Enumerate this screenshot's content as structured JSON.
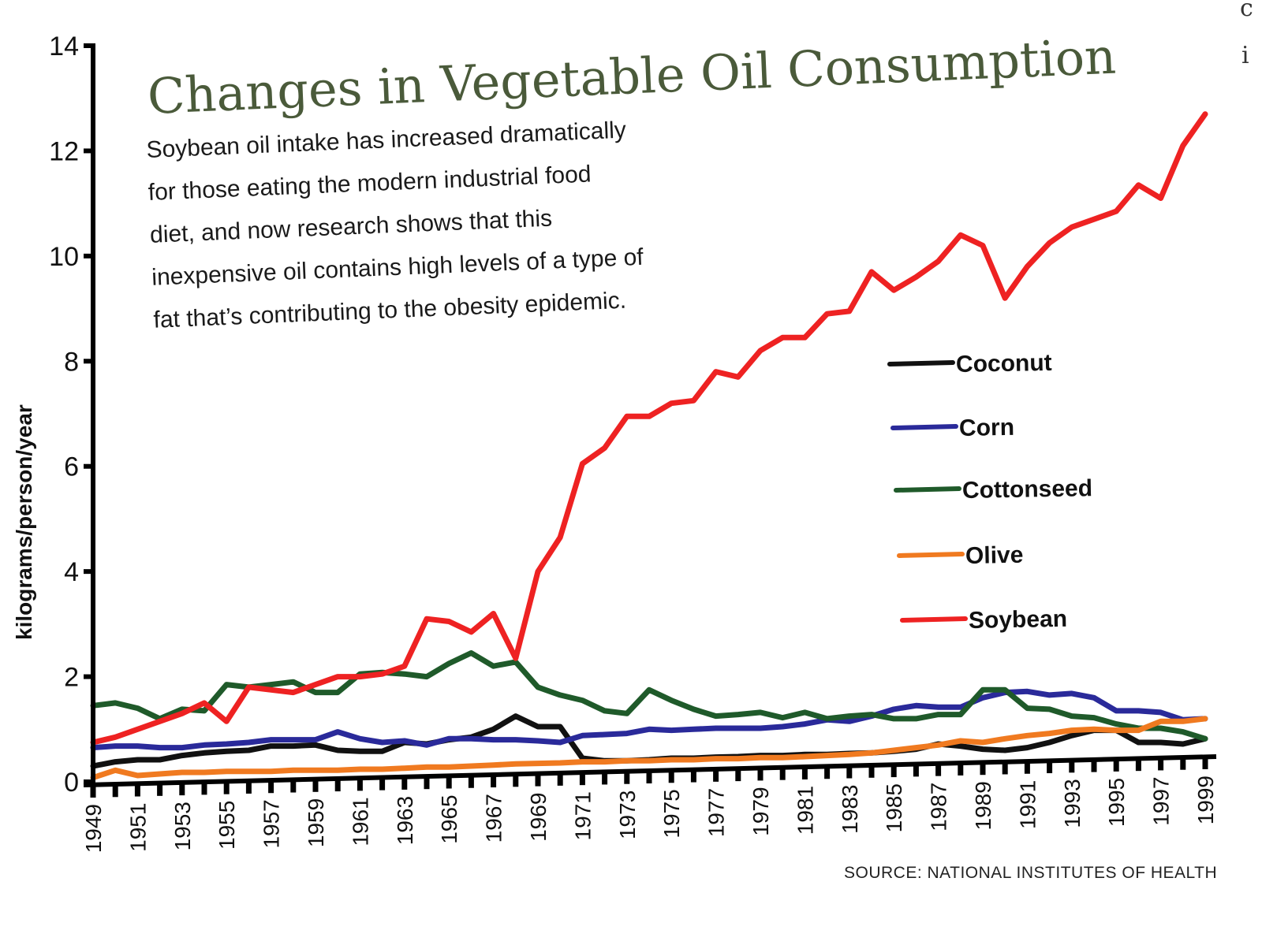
{
  "chart_data": {
    "type": "line",
    "title": "Changes in Vegetable Oil Consumption",
    "subtitle": "Soybean oil intake has increased dramatically for those eating the modern industrial food diet, and now research shows that this inexpensive oil contains high levels of a type of fat that's contributing to the obesity epidemic.",
    "subtitle_lines": [
      "Soybean oil intake has increased dramatically",
      "for those eating the modern industrial food",
      "diet, and now research shows that this",
      "inexpensive oil contains high levels of a type of",
      "fat that’s contributing to the obesity epidemic."
    ],
    "xlabel": "",
    "ylabel": "kilograms/person/year",
    "ylim": [
      0,
      14
    ],
    "yticks": [
      0,
      2,
      4,
      6,
      8,
      10,
      12,
      14
    ],
    "xlim": [
      1949,
      1999
    ],
    "xtick_labels": [
      "1949",
      "1951",
      "1953",
      "1955",
      "1957",
      "1959",
      "1961",
      "1963",
      "1965",
      "1967",
      "1969",
      "1971",
      "1973",
      "1975",
      "1977",
      "1979",
      "1981",
      "1983",
      "1985",
      "1987",
      "1989",
      "1991",
      "1993",
      "1995",
      "1997",
      "1999"
    ],
    "grid": false,
    "legend_position": "right",
    "source": "SOURCE: NATIONAL INSTITUTES OF HEALTH",
    "x": [
      1949,
      1950,
      1951,
      1952,
      1953,
      1954,
      1955,
      1956,
      1957,
      1958,
      1959,
      1960,
      1961,
      1962,
      1963,
      1964,
      1965,
      1966,
      1967,
      1968,
      1969,
      1970,
      1971,
      1972,
      1973,
      1974,
      1975,
      1976,
      1977,
      1978,
      1979,
      1980,
      1981,
      1982,
      1983,
      1984,
      1985,
      1986,
      1987,
      1988,
      1989,
      1990,
      1991,
      1992,
      1993,
      1994,
      1995,
      1996,
      1997,
      1998,
      1999
    ],
    "series": [
      {
        "name": "Coconut",
        "color": "#111111",
        "values": [
          0.3,
          0.38,
          0.42,
          0.42,
          0.5,
          0.55,
          0.58,
          0.6,
          0.68,
          0.68,
          0.7,
          0.6,
          0.58,
          0.58,
          0.75,
          0.72,
          0.8,
          0.85,
          1.0,
          1.25,
          1.05,
          1.05,
          0.45,
          0.4,
          0.4,
          0.42,
          0.45,
          0.45,
          0.47,
          0.48,
          0.5,
          0.5,
          0.52,
          0.52,
          0.54,
          0.55,
          0.58,
          0.62,
          0.72,
          0.68,
          0.62,
          0.6,
          0.65,
          0.75,
          0.88,
          0.98,
          0.98,
          0.75,
          0.75,
          0.72,
          0.82
        ]
      },
      {
        "name": "Corn",
        "color": "#2a2a9a",
        "values": [
          0.65,
          0.68,
          0.68,
          0.65,
          0.65,
          0.7,
          0.72,
          0.75,
          0.8,
          0.8,
          0.8,
          0.95,
          0.82,
          0.75,
          0.78,
          0.7,
          0.82,
          0.82,
          0.8,
          0.8,
          0.78,
          0.75,
          0.88,
          0.9,
          0.92,
          1.0,
          0.98,
          1.0,
          1.02,
          1.02,
          1.02,
          1.05,
          1.1,
          1.18,
          1.15,
          1.25,
          1.38,
          1.45,
          1.42,
          1.42,
          1.6,
          1.7,
          1.72,
          1.65,
          1.68,
          1.6,
          1.35,
          1.35,
          1.32,
          1.18,
          1.2
        ]
      },
      {
        "name": "Cottonseed",
        "color": "#1f5a2a",
        "values": [
          1.45,
          1.5,
          1.4,
          1.2,
          1.38,
          1.35,
          1.85,
          1.8,
          1.85,
          1.9,
          1.7,
          1.7,
          2.05,
          2.08,
          2.05,
          2.0,
          2.25,
          2.45,
          2.2,
          2.28,
          1.8,
          1.65,
          1.55,
          1.35,
          1.3,
          1.75,
          1.55,
          1.38,
          1.25,
          1.28,
          1.32,
          1.22,
          1.32,
          1.2,
          1.25,
          1.28,
          1.2,
          1.2,
          1.28,
          1.28,
          1.75,
          1.75,
          1.4,
          1.38,
          1.25,
          1.22,
          1.1,
          1.02,
          1.02,
          0.95,
          0.82
        ]
      },
      {
        "name": "Olive",
        "color": "#f07a20",
        "values": [
          0.08,
          0.22,
          0.12,
          0.15,
          0.18,
          0.18,
          0.2,
          0.2,
          0.2,
          0.22,
          0.22,
          0.22,
          0.24,
          0.24,
          0.26,
          0.28,
          0.28,
          0.3,
          0.32,
          0.34,
          0.35,
          0.36,
          0.38,
          0.38,
          0.4,
          0.4,
          0.42,
          0.42,
          0.44,
          0.44,
          0.46,
          0.46,
          0.48,
          0.5,
          0.52,
          0.55,
          0.6,
          0.65,
          0.7,
          0.78,
          0.75,
          0.82,
          0.88,
          0.92,
          0.98,
          1.0,
          0.98,
          0.98,
          1.15,
          1.15,
          1.2
        ]
      },
      {
        "name": "Soybean",
        "color": "#ee2222",
        "values": [
          0.75,
          0.85,
          1.0,
          1.15,
          1.3,
          1.5,
          1.15,
          1.8,
          1.75,
          1.7,
          1.85,
          2.0,
          2.0,
          2.05,
          2.2,
          3.1,
          3.05,
          2.85,
          3.2,
          2.35,
          4.0,
          4.65,
          6.05,
          6.35,
          6.95,
          6.95,
          7.2,
          7.25,
          7.8,
          7.7,
          8.2,
          8.45,
          8.45,
          8.9,
          8.95,
          9.7,
          9.35,
          9.6,
          9.9,
          10.4,
          10.2,
          9.2,
          9.8,
          10.25,
          10.55,
          10.7,
          10.85,
          11.35,
          11.1,
          12.1,
          12.7
        ]
      }
    ]
  },
  "edge_glyphs": [
    "c",
    "i"
  ]
}
